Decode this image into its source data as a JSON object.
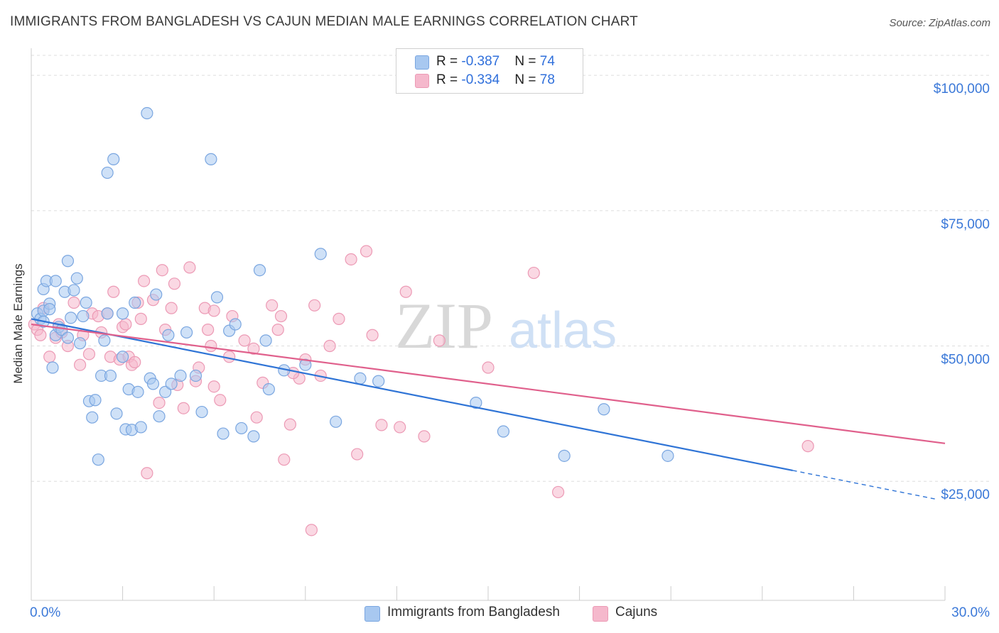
{
  "title": "IMMIGRANTS FROM BANGLADESH VS CAJUN MEDIAN MALE EARNINGS CORRELATION CHART",
  "source": "Source: ZipAtlas.com",
  "watermark": {
    "zip": "ZIP",
    "atlas": "atlas"
  },
  "colors": {
    "blue_fill": "#a8c8f0",
    "blue_stroke": "#7aa6e0",
    "blue_line": "#2f74d6",
    "pink_fill": "#f5b8cc",
    "pink_stroke": "#ec9ab5",
    "pink_line": "#e0608c",
    "axis_label": "#3a78d8",
    "grid": "#dddddd"
  },
  "legend": {
    "rows": [
      {
        "r_label": "R = ",
        "r_value": "-0.387",
        "n_label": "N = ",
        "n_value": "74"
      },
      {
        "r_label": "R = ",
        "r_value": "-0.334",
        "n_label": "N = ",
        "n_value": "78"
      }
    ]
  },
  "bottom_legend": [
    "Immigrants from Bangladesh",
    "Cajuns"
  ],
  "chart_data": {
    "type": "scatter",
    "title": "IMMIGRANTS FROM BANGLADESH VS CAJUN MEDIAN MALE EARNINGS CORRELATION CHART",
    "xlabel": "",
    "ylabel": "Median Male Earnings",
    "xlim": [
      0,
      30
    ],
    "ylim": [
      3000,
      105000
    ],
    "x_tick_labels": [
      "0.0%",
      "30.0%"
    ],
    "y_ticks": [
      25000,
      50000,
      75000,
      100000
    ],
    "y_tick_labels": [
      "$25,000",
      "$50,000",
      "$75,000",
      "$100,000"
    ],
    "grid": true,
    "legend_position": "top-center",
    "series": [
      {
        "name": "Immigrants from Bangladesh",
        "r": -0.387,
        "n": 74,
        "trend": {
          "x0": 0,
          "y0": 55000,
          "x1": 25.0,
          "y1": 27000,
          "dash_to_x": 29.7,
          "dash_to_y": 21700
        },
        "points": [
          [
            0.2,
            56000
          ],
          [
            0.3,
            55000
          ],
          [
            0.4,
            60500
          ],
          [
            0.4,
            56500
          ],
          [
            0.5,
            62000
          ],
          [
            0.6,
            57800
          ],
          [
            0.6,
            56800
          ],
          [
            0.7,
            46000
          ],
          [
            0.8,
            52000
          ],
          [
            0.9,
            53500
          ],
          [
            1.0,
            53000
          ],
          [
            1.1,
            60000
          ],
          [
            1.2,
            51500
          ],
          [
            1.3,
            55200
          ],
          [
            1.4,
            60300
          ],
          [
            1.5,
            62500
          ],
          [
            1.7,
            55500
          ],
          [
            1.8,
            58000
          ],
          [
            1.9,
            39800
          ],
          [
            2.0,
            36800
          ],
          [
            2.1,
            40000
          ],
          [
            2.2,
            29000
          ],
          [
            2.3,
            44500
          ],
          [
            2.4,
            51000
          ],
          [
            2.5,
            56000
          ],
          [
            2.6,
            44500
          ],
          [
            2.7,
            84500
          ],
          [
            2.8,
            37500
          ],
          [
            3.0,
            56000
          ],
          [
            3.1,
            34600
          ],
          [
            3.2,
            42000
          ],
          [
            3.3,
            34500
          ],
          [
            3.4,
            58000
          ],
          [
            3.5,
            41500
          ],
          [
            3.6,
            35000
          ],
          [
            3.8,
            93000
          ],
          [
            3.9,
            44000
          ],
          [
            4.0,
            43000
          ],
          [
            4.1,
            59500
          ],
          [
            4.2,
            37000
          ],
          [
            4.4,
            41500
          ],
          [
            4.6,
            43000
          ],
          [
            4.9,
            44500
          ],
          [
            5.1,
            52500
          ],
          [
            5.4,
            44500
          ],
          [
            5.6,
            37800
          ],
          [
            5.9,
            84500
          ],
          [
            6.1,
            59000
          ],
          [
            6.3,
            33800
          ],
          [
            6.5,
            52800
          ],
          [
            6.7,
            54000
          ],
          [
            6.9,
            34800
          ],
          [
            7.3,
            33300
          ],
          [
            7.5,
            64000
          ],
          [
            7.7,
            51000
          ],
          [
            7.8,
            42000
          ],
          [
            8.3,
            45500
          ],
          [
            9.0,
            46500
          ],
          [
            9.5,
            67000
          ],
          [
            10.0,
            36000
          ],
          [
            10.8,
            44000
          ],
          [
            11.4,
            43500
          ],
          [
            14.6,
            39500
          ],
          [
            15.5,
            34200
          ],
          [
            17.5,
            29700
          ],
          [
            18.8,
            38300
          ],
          [
            20.9,
            29700
          ],
          [
            1.2,
            65700
          ],
          [
            0.8,
            62000
          ],
          [
            2.5,
            82000
          ],
          [
            4.5,
            52000
          ],
          [
            1.6,
            50500
          ],
          [
            0.4,
            54500
          ],
          [
            3.0,
            48000
          ]
        ]
      },
      {
        "name": "Cajuns",
        "r": -0.334,
        "n": 78,
        "trend": {
          "x0": 0,
          "y0": 54000,
          "x1": 30.0,
          "y1": 32000
        },
        "points": [
          [
            0.1,
            54000
          ],
          [
            0.2,
            53000
          ],
          [
            0.3,
            52000
          ],
          [
            0.4,
            57000
          ],
          [
            0.6,
            48000
          ],
          [
            0.8,
            51500
          ],
          [
            0.9,
            54000
          ],
          [
            1.0,
            52500
          ],
          [
            1.2,
            50000
          ],
          [
            1.4,
            58000
          ],
          [
            1.6,
            46500
          ],
          [
            1.7,
            52000
          ],
          [
            1.9,
            48500
          ],
          [
            2.0,
            56000
          ],
          [
            2.2,
            55500
          ],
          [
            2.3,
            52500
          ],
          [
            2.5,
            56000
          ],
          [
            2.6,
            48000
          ],
          [
            2.7,
            60000
          ],
          [
            2.9,
            47500
          ],
          [
            3.0,
            53500
          ],
          [
            3.1,
            54000
          ],
          [
            3.2,
            48000
          ],
          [
            3.3,
            46500
          ],
          [
            3.4,
            47000
          ],
          [
            3.5,
            58000
          ],
          [
            3.6,
            55000
          ],
          [
            3.7,
            62000
          ],
          [
            3.8,
            26500
          ],
          [
            4.0,
            58500
          ],
          [
            4.2,
            39500
          ],
          [
            4.3,
            64000
          ],
          [
            4.4,
            53000
          ],
          [
            4.6,
            57000
          ],
          [
            4.7,
            61500
          ],
          [
            4.8,
            42800
          ],
          [
            5.0,
            38500
          ],
          [
            5.2,
            64500
          ],
          [
            5.4,
            43500
          ],
          [
            5.5,
            46000
          ],
          [
            5.7,
            57000
          ],
          [
            5.8,
            53000
          ],
          [
            5.9,
            50000
          ],
          [
            6.0,
            42500
          ],
          [
            6.2,
            40000
          ],
          [
            6.5,
            48000
          ],
          [
            6.6,
            55500
          ],
          [
            7.0,
            51000
          ],
          [
            7.3,
            49500
          ],
          [
            7.4,
            36800
          ],
          [
            7.6,
            43200
          ],
          [
            7.9,
            57500
          ],
          [
            8.1,
            53000
          ],
          [
            8.2,
            55500
          ],
          [
            8.3,
            29000
          ],
          [
            8.5,
            35500
          ],
          [
            8.8,
            44000
          ],
          [
            9.0,
            47500
          ],
          [
            9.3,
            57500
          ],
          [
            9.5,
            44500
          ],
          [
            9.8,
            50000
          ],
          [
            10.1,
            55000
          ],
          [
            10.5,
            66000
          ],
          [
            10.7,
            30000
          ],
          [
            11.0,
            67500
          ],
          [
            11.2,
            52000
          ],
          [
            11.5,
            35400
          ],
          [
            12.1,
            35000
          ],
          [
            12.3,
            60000
          ],
          [
            12.9,
            33300
          ],
          [
            13.4,
            51000
          ],
          [
            15.0,
            46000
          ],
          [
            16.5,
            63500
          ],
          [
            17.3,
            23000
          ],
          [
            25.5,
            31500
          ],
          [
            9.2,
            16000
          ],
          [
            6.0,
            56500
          ],
          [
            8.6,
            45000
          ]
        ]
      }
    ]
  }
}
